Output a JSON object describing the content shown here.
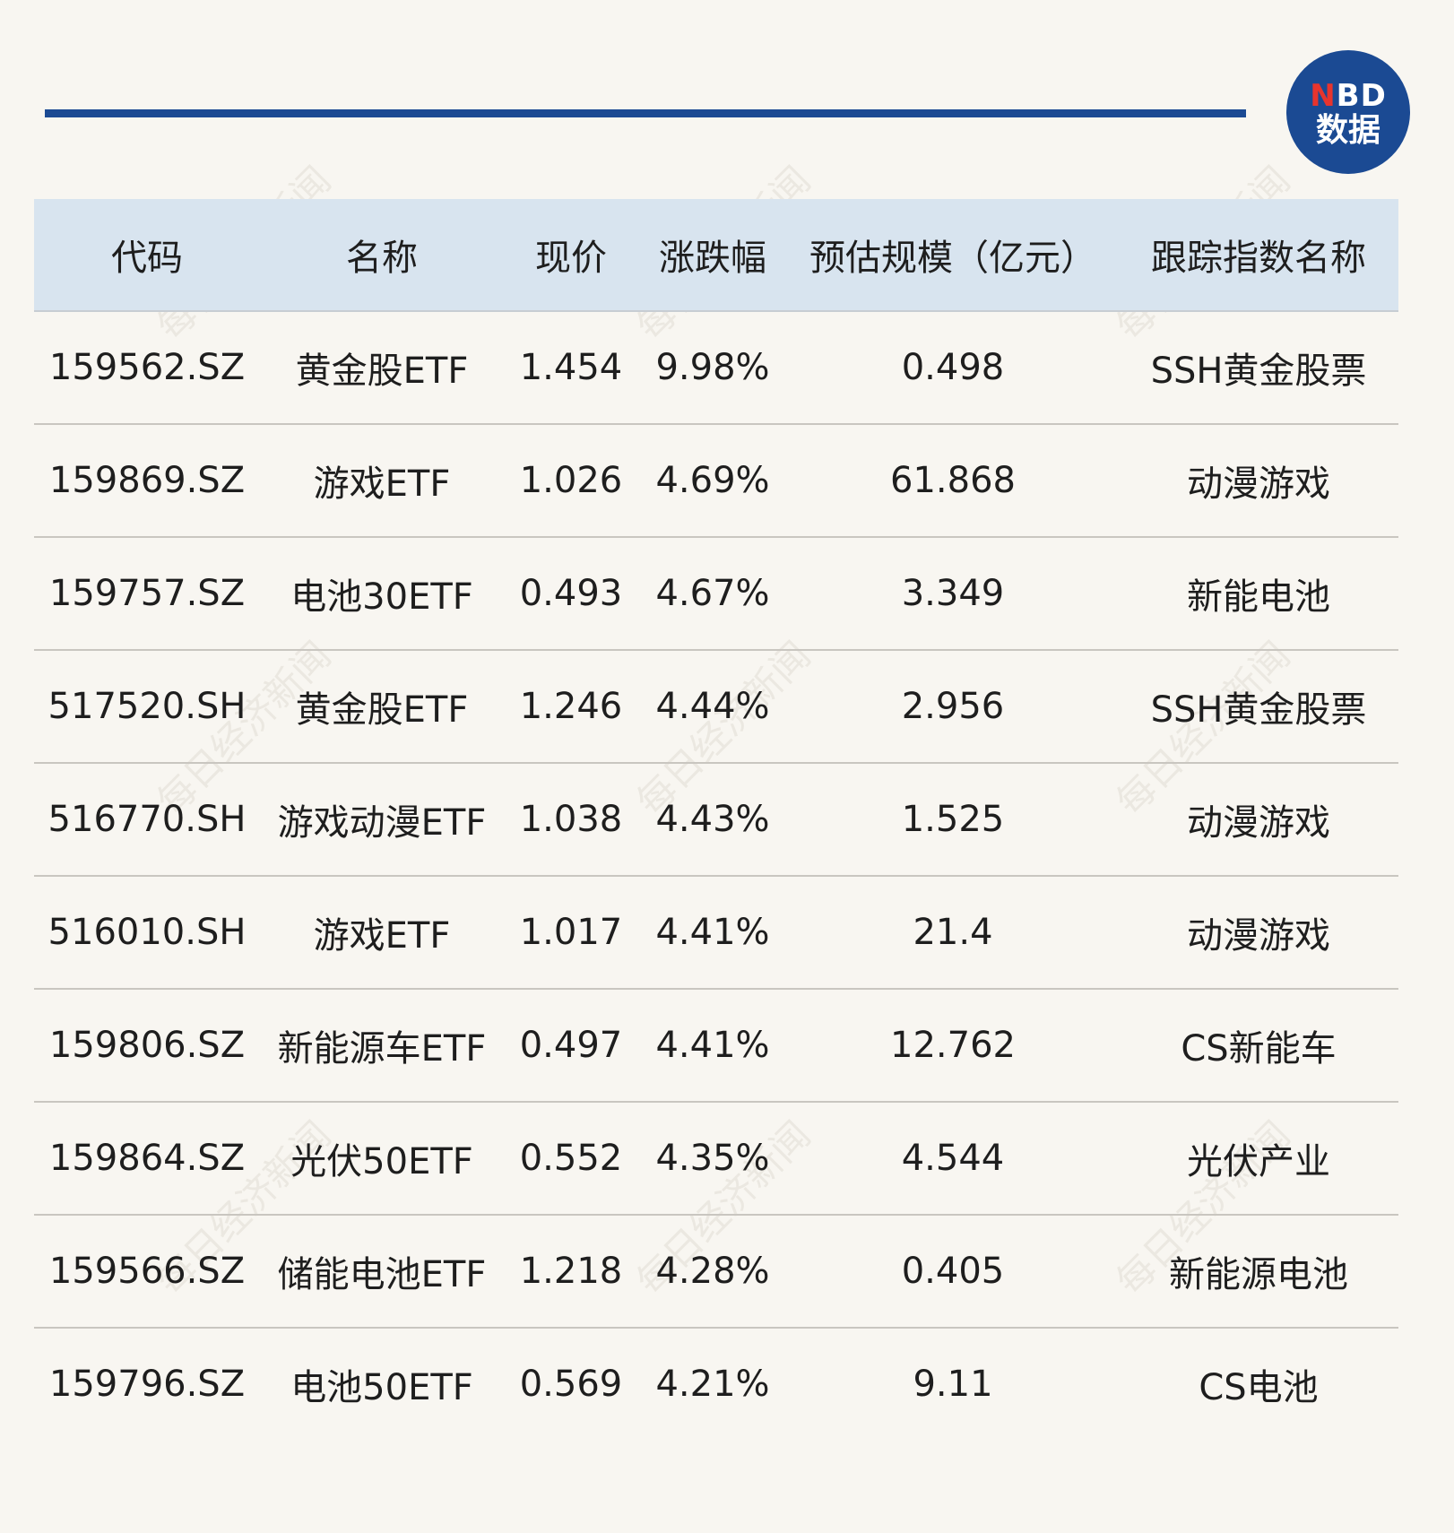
{
  "logo": {
    "line1_accent": "N",
    "line1_rest": "BD",
    "line2": "数据",
    "colors": {
      "background": "#1b4a93",
      "accent": "#e8342d"
    }
  },
  "watermark_text": "每日经济新闻",
  "table": {
    "columns": [
      "代码",
      "名称",
      "现价",
      "涨跌幅",
      "预估规模（亿元）",
      "跟踪指数名称"
    ],
    "rows": [
      [
        "159562.SZ",
        "黄金股ETF",
        "1.454",
        "9.98%",
        "0.498",
        "SSH黄金股票"
      ],
      [
        "159869.SZ",
        "游戏ETF",
        "1.026",
        "4.69%",
        "61.868",
        "动漫游戏"
      ],
      [
        "159757.SZ",
        "电池30ETF",
        "0.493",
        "4.67%",
        "3.349",
        "新能电池"
      ],
      [
        "517520.SH",
        "黄金股ETF",
        "1.246",
        "4.44%",
        "2.956",
        "SSH黄金股票"
      ],
      [
        "516770.SH",
        "游戏动漫ETF",
        "1.038",
        "4.43%",
        "1.525",
        "动漫游戏"
      ],
      [
        "516010.SH",
        "游戏ETF",
        "1.017",
        "4.41%",
        "21.4",
        "动漫游戏"
      ],
      [
        "159806.SZ",
        "新能源车ETF",
        "0.497",
        "4.41%",
        "12.762",
        "CS新能车"
      ],
      [
        "159864.SZ",
        "光伏50ETF",
        "0.552",
        "4.35%",
        "4.544",
        "光伏产业"
      ],
      [
        "159566.SZ",
        "储能电池ETF",
        "1.218",
        "4.28%",
        "0.405",
        "新能源电池"
      ],
      [
        "159796.SZ",
        "电池50ETF",
        "0.569",
        "4.21%",
        "9.11",
        "CS电池"
      ]
    ]
  },
  "colors": {
    "page_background": "#f8f6f1",
    "header_background": "#d8e4ef",
    "rule": "#1b4a93",
    "text": "#1e1e1e"
  }
}
